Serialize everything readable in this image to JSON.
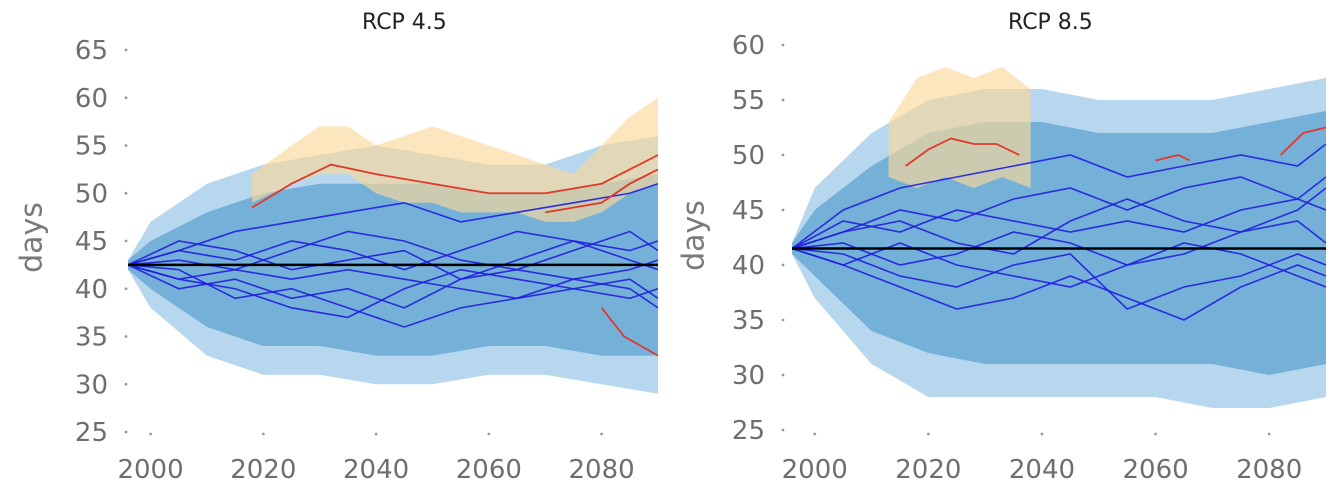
{
  "chart_data": [
    {
      "type": "line",
      "title": "RCP 4.5",
      "ylabel": "days",
      "xlabel": "",
      "xlim": [
        1996,
        2090
      ],
      "ylim": [
        25,
        65
      ],
      "xticks": [
        2000,
        2020,
        2040,
        2060,
        2080
      ],
      "yticks": [
        25,
        30,
        35,
        40,
        45,
        50,
        55,
        60,
        65
      ],
      "grid": false,
      "baseline": 42.5,
      "band_outer": {
        "x": [
          1996,
          2000,
          2010,
          2020,
          2030,
          2040,
          2050,
          2060,
          2070,
          2080,
          2090
        ],
        "upper": [
          43,
          47,
          51,
          53,
          54,
          55,
          54,
          53,
          53,
          55,
          56
        ],
        "lower": [
          42,
          38,
          33,
          31,
          31,
          30,
          30,
          31,
          31,
          30,
          29
        ]
      },
      "band_inner": {
        "x": [
          1996,
          2000,
          2010,
          2020,
          2030,
          2040,
          2050,
          2060,
          2070,
          2080,
          2090
        ],
        "upper": [
          43,
          45,
          48,
          50,
          51,
          51,
          51,
          50,
          50,
          51,
          52
        ],
        "lower": [
          42,
          40,
          36,
          34,
          34,
          33,
          33,
          34,
          34,
          33,
          33
        ]
      },
      "band_highlight": {
        "x": [
          2018,
          2025,
          2030,
          2035,
          2040,
          2045,
          2050,
          2055,
          2060,
          2065,
          2070,
          2075,
          2080,
          2085,
          2090
        ],
        "upper": [
          52,
          55,
          57,
          57,
          55,
          56,
          57,
          56,
          55,
          54,
          53,
          52,
          55,
          58,
          60
        ],
        "lower": [
          49,
          51,
          52,
          52,
          50,
          49,
          49,
          48,
          48,
          48,
          47,
          47,
          48,
          50,
          51
        ]
      },
      "series": [
        {
          "x": [
            1996,
            2005,
            2015,
            2025,
            2035,
            2045,
            2055,
            2065,
            2075,
            2085,
            2090
          ],
          "values": [
            42.5,
            45,
            44,
            42,
            43,
            44,
            41,
            43,
            45,
            44,
            45
          ]
        },
        {
          "x": [
            1996,
            2005,
            2015,
            2025,
            2035,
            2045,
            2055,
            2065,
            2075,
            2085,
            2090
          ],
          "values": [
            42.5,
            41,
            40,
            38,
            37,
            40,
            42,
            41,
            40,
            39,
            40
          ]
        },
        {
          "x": [
            1996,
            2005,
            2015,
            2025,
            2035,
            2045,
            2055,
            2065,
            2075,
            2085,
            2090
          ],
          "values": [
            42.5,
            44,
            46,
            47,
            48,
            49,
            47,
            48,
            49,
            50,
            51
          ]
        },
        {
          "x": [
            1996,
            2005,
            2015,
            2025,
            2035,
            2045,
            2055,
            2065,
            2075,
            2085,
            2090
          ],
          "values": [
            42.5,
            43,
            42,
            44,
            46,
            45,
            43,
            42,
            44,
            46,
            44
          ]
        },
        {
          "x": [
            1996,
            2005,
            2015,
            2025,
            2035,
            2045,
            2055,
            2065,
            2075,
            2085,
            2090
          ],
          "values": [
            42.5,
            42,
            39,
            40,
            38,
            36,
            38,
            39,
            40,
            41,
            39
          ]
        },
        {
          "x": [
            1996,
            2005,
            2015,
            2025,
            2035,
            2045,
            2055,
            2065,
            2075,
            2085,
            2090
          ],
          "values": [
            42.5,
            41,
            42,
            41,
            42,
            41,
            40,
            39,
            41,
            42,
            43
          ]
        },
        {
          "x": [
            1996,
            2005,
            2015,
            2025,
            2035,
            2045,
            2055,
            2065,
            2075,
            2085,
            2090
          ],
          "values": [
            42.5,
            44,
            43,
            45,
            44,
            42,
            44,
            46,
            45,
            43,
            42
          ]
        },
        {
          "x": [
            1996,
            2005,
            2015,
            2025,
            2035,
            2045,
            2055,
            2065,
            2075,
            2085,
            2090
          ],
          "values": [
            42.5,
            40,
            41,
            39,
            40,
            38,
            41,
            42,
            41,
            40,
            38
          ]
        }
      ],
      "highlight_series": [
        {
          "x": [
            2018,
            2025,
            2032,
            2040,
            2050,
            2060,
            2070,
            2080,
            2090
          ],
          "values": [
            48.5,
            51,
            53,
            52,
            51,
            50,
            50,
            51,
            54
          ]
        },
        {
          "x": [
            2070,
            2080,
            2085,
            2090
          ],
          "values": [
            48,
            49,
            51,
            52.5
          ]
        },
        {
          "x": [
            2080,
            2084,
            2090
          ],
          "values": [
            38,
            35,
            33
          ]
        }
      ],
      "colors": {
        "baseline": "#000000",
        "series": "#1f1fe0",
        "highlight": "#e0392b",
        "band_outer": "#9ec9e8",
        "band_inner": "#3f8fc7",
        "band_highlight": "#fbd99a"
      }
    },
    {
      "type": "line",
      "title": "RCP 8.5",
      "ylabel": "days",
      "xlabel": "",
      "xlim": [
        1996,
        2090
      ],
      "ylim": [
        25,
        60
      ],
      "xticks": [
        2000,
        2020,
        2040,
        2060,
        2080
      ],
      "yticks": [
        25,
        30,
        35,
        40,
        45,
        50,
        55,
        60
      ],
      "grid": false,
      "baseline": 41.5,
      "band_outer": {
        "x": [
          1996,
          2000,
          2010,
          2020,
          2030,
          2040,
          2050,
          2060,
          2070,
          2080,
          2090
        ],
        "upper": [
          42,
          47,
          52,
          55,
          56,
          56,
          55,
          55,
          55,
          56,
          57
        ],
        "lower": [
          41,
          37,
          31,
          28,
          28,
          28,
          28,
          28,
          27,
          27,
          28
        ]
      },
      "band_inner": {
        "x": [
          1996,
          2000,
          2010,
          2020,
          2030,
          2040,
          2050,
          2060,
          2070,
          2080,
          2090
        ],
        "upper": [
          42,
          45,
          49,
          52,
          53,
          53,
          52,
          52,
          52,
          53,
          54
        ],
        "lower": [
          41,
          39,
          34,
          32,
          31,
          31,
          31,
          31,
          31,
          30,
          31
        ]
      },
      "band_highlight": {
        "x": [
          2013,
          2018,
          2023,
          2028,
          2033,
          2038
        ],
        "upper": [
          53,
          57,
          58,
          57,
          58,
          56
        ],
        "lower": [
          48,
          47,
          48,
          47,
          48,
          47
        ]
      },
      "series": [
        {
          "x": [
            1996,
            2005,
            2015,
            2025,
            2035,
            2045,
            2055,
            2065,
            2075,
            2085,
            2090
          ],
          "values": [
            41.5,
            45,
            47,
            48,
            49,
            50,
            48,
            49,
            50,
            49,
            51
          ]
        },
        {
          "x": [
            1996,
            2005,
            2015,
            2025,
            2035,
            2045,
            2055,
            2065,
            2075,
            2085,
            2090
          ],
          "values": [
            41.5,
            40,
            38,
            36,
            37,
            39,
            37,
            35,
            38,
            40,
            39
          ]
        },
        {
          "x": [
            1996,
            2005,
            2015,
            2025,
            2035,
            2045,
            2055,
            2065,
            2075,
            2085,
            2090
          ],
          "values": [
            41.5,
            43,
            45,
            44,
            46,
            47,
            45,
            47,
            48,
            46,
            48
          ]
        },
        {
          "x": [
            1996,
            2005,
            2015,
            2025,
            2035,
            2045,
            2055,
            2065,
            2075,
            2085,
            2090
          ],
          "values": [
            41.5,
            42,
            40,
            41,
            43,
            42,
            40,
            41,
            43,
            44,
            42
          ]
        },
        {
          "x": [
            1996,
            2005,
            2015,
            2025,
            2035,
            2045,
            2055,
            2065,
            2075,
            2085,
            2090
          ],
          "values": [
            41.5,
            41,
            39,
            38,
            40,
            41,
            36,
            38,
            39,
            41,
            40
          ]
        },
        {
          "x": [
            1996,
            2005,
            2015,
            2025,
            2035,
            2045,
            2055,
            2065,
            2075,
            2085,
            2090
          ],
          "values": [
            41.5,
            44,
            43,
            45,
            44,
            43,
            44,
            43,
            45,
            46,
            45
          ]
        },
        {
          "x": [
            1996,
            2005,
            2015,
            2025,
            2035,
            2045,
            2055,
            2065,
            2075,
            2085,
            2090
          ],
          "values": [
            41.5,
            40,
            42,
            40,
            39,
            38,
            40,
            42,
            41,
            39,
            38
          ]
        },
        {
          "x": [
            1996,
            2005,
            2015,
            2025,
            2035,
            2045,
            2055,
            2065,
            2075,
            2085,
            2090
          ],
          "values": [
            41.5,
            43,
            44,
            42,
            41,
            44,
            46,
            44,
            43,
            45,
            47
          ]
        }
      ],
      "highlight_series": [
        {
          "x": [
            2016,
            2020,
            2024,
            2028,
            2032,
            2036
          ],
          "values": [
            49,
            50.5,
            51.5,
            51,
            51,
            50
          ]
        },
        {
          "x": [
            2060,
            2064,
            2066
          ],
          "values": [
            49.5,
            50,
            49.5
          ]
        },
        {
          "x": [
            2082,
            2086,
            2090
          ],
          "values": [
            50,
            52,
            52.5
          ]
        }
      ],
      "colors": {
        "baseline": "#000000",
        "series": "#1f1fe0",
        "highlight": "#e0392b",
        "band_outer": "#9ec9e8",
        "band_inner": "#3f8fc7",
        "band_highlight": "#fbd99a"
      }
    }
  ]
}
